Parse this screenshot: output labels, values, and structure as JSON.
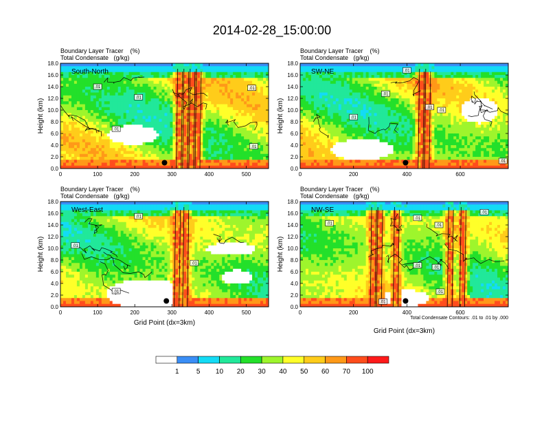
{
  "title": "2014-02-28_15:00:00",
  "colorbar": {
    "labels": [
      "1",
      "5",
      "10",
      "20",
      "30",
      "40",
      "50",
      "60",
      "70",
      "100"
    ],
    "colors": [
      "#ffffff",
      "#3a8ef6",
      "#13dbf5",
      "#21e89a",
      "#23e02a",
      "#9ef52c",
      "#ffff29",
      "#ffcc1a",
      "#ff9918",
      "#ff4d1c",
      "#ff1a1a"
    ]
  },
  "contour_note": "Total Condensate Contours: .01 to .01 by .000",
  "chart_data": [
    {
      "type": "heatmap",
      "panel_label": "South-North",
      "subtitle_line1": "Boundary Layer Tracer    (%)",
      "subtitle_line2": "Total Condensate   (g/kg)",
      "ylabel": "Height (km)",
      "xlabel": "",
      "ylim": [
        0,
        18
      ],
      "xlim": [
        0,
        560
      ],
      "yticks": [
        "0.0",
        "2.0",
        "4.0",
        "6.0",
        "8.0",
        "10.0",
        "12.0",
        "14.0",
        "16.0",
        "18.0"
      ],
      "xticks": [
        "0",
        "100",
        "200",
        "300",
        "400",
        "500"
      ],
      "xtick_values": [
        0,
        100,
        200,
        300,
        400,
        500
      ],
      "marker": {
        "x": 280,
        "y": 1.0
      },
      "contour_labels": [
        {
          "text": ".01",
          "x": 100,
          "y": 14.0
        },
        {
          "text": ".01",
          "x": 210,
          "y": 12.2
        },
        {
          "text": ".01",
          "x": 150,
          "y": 6.8
        },
        {
          "text": ".01",
          "x": 515,
          "y": 13.8
        },
        {
          "text": ".01",
          "x": 520,
          "y": 3.8
        }
      ]
    },
    {
      "type": "heatmap",
      "panel_label": "SW-NE",
      "subtitle_line1": "Boundary Layer Tracer    (%)",
      "subtitle_line2": "Total Condensate   (g/kg)",
      "ylabel": "Height (km)",
      "xlabel": "",
      "ylim": [
        0,
        18
      ],
      "xlim": [
        0,
        780
      ],
      "yticks": [
        "0.0",
        "2.0",
        "4.0",
        "6.0",
        "8.0",
        "10.0",
        "12.0",
        "14.0",
        "16.0",
        "18.0"
      ],
      "xticks": [
        "0",
        "200",
        "400",
        "600"
      ],
      "xtick_values": [
        0,
        200,
        400,
        600
      ],
      "marker": {
        "x": 395,
        "y": 1.0
      },
      "contour_labels": [
        {
          "text": ".01",
          "x": 400,
          "y": 16.8
        },
        {
          "text": ".01",
          "x": 320,
          "y": 12.8
        },
        {
          "text": ".01",
          "x": 200,
          "y": 8.8
        },
        {
          "text": ".01",
          "x": 485,
          "y": 10.5
        },
        {
          "text": ".01",
          "x": 530,
          "y": 10.0
        },
        {
          "text": ".01",
          "x": 760,
          "y": 1.3
        }
      ]
    },
    {
      "type": "heatmap",
      "panel_label": "West-East",
      "subtitle_line1": "Boundary Layer Tracer    (%)",
      "subtitle_line2": "Total Condensate   (g/kg)",
      "ylabel": "Height (km)",
      "xlabel": "Grid Point (dx=3km)",
      "ylim": [
        0,
        18
      ],
      "xlim": [
        0,
        560
      ],
      "yticks": [
        "0.0",
        "2.0",
        "4.0",
        "6.0",
        "8.0",
        "10.0",
        "12.0",
        "14.0",
        "16.0",
        "18.0"
      ],
      "xticks": [
        "0",
        "100",
        "200",
        "300",
        "400",
        "500"
      ],
      "xtick_values": [
        0,
        100,
        200,
        300,
        400,
        500
      ],
      "marker": {
        "x": 285,
        "y": 1.0
      },
      "contour_labels": [
        {
          "text": ".01",
          "x": 210,
          "y": 15.5
        },
        {
          "text": ".01",
          "x": 40,
          "y": 10.5
        },
        {
          "text": ".01",
          "x": 360,
          "y": 7.5
        },
        {
          "text": ".01",
          "x": 150,
          "y": 2.7
        }
      ]
    },
    {
      "type": "heatmap",
      "panel_label": "NW-SE",
      "subtitle_line1": "Boundary Layer Tracer    (%)",
      "subtitle_line2": "Total Condensate   (g/kg)",
      "ylabel": "Height (km)",
      "xlabel": "Grid Point (dx=3km)",
      "ylim": [
        0,
        18
      ],
      "xlim": [
        0,
        780
      ],
      "yticks": [
        "0.0",
        "2.0",
        "4.0",
        "6.0",
        "8.0",
        "10.0",
        "12.0",
        "14.0",
        "16.0",
        "18.0"
      ],
      "xticks": [
        "0",
        "200",
        "400",
        "600"
      ],
      "xtick_values": [
        0,
        200,
        400,
        600
      ],
      "marker": {
        "x": 395,
        "y": 1.0
      },
      "contour_labels": [
        {
          "text": ".01",
          "x": 110,
          "y": 14.3
        },
        {
          "text": ".01",
          "x": 440,
          "y": 15.2
        },
        {
          "text": ".01",
          "x": 520,
          "y": 14.0
        },
        {
          "text": ".01",
          "x": 440,
          "y": 7.1
        },
        {
          "text": ".01",
          "x": 510,
          "y": 6.8
        },
        {
          "text": ".01",
          "x": 525,
          "y": 2.6
        },
        {
          "text": ".01",
          "x": 310,
          "y": 0.9
        },
        {
          "text": ".01",
          "x": 690,
          "y": 16.2
        }
      ]
    }
  ]
}
